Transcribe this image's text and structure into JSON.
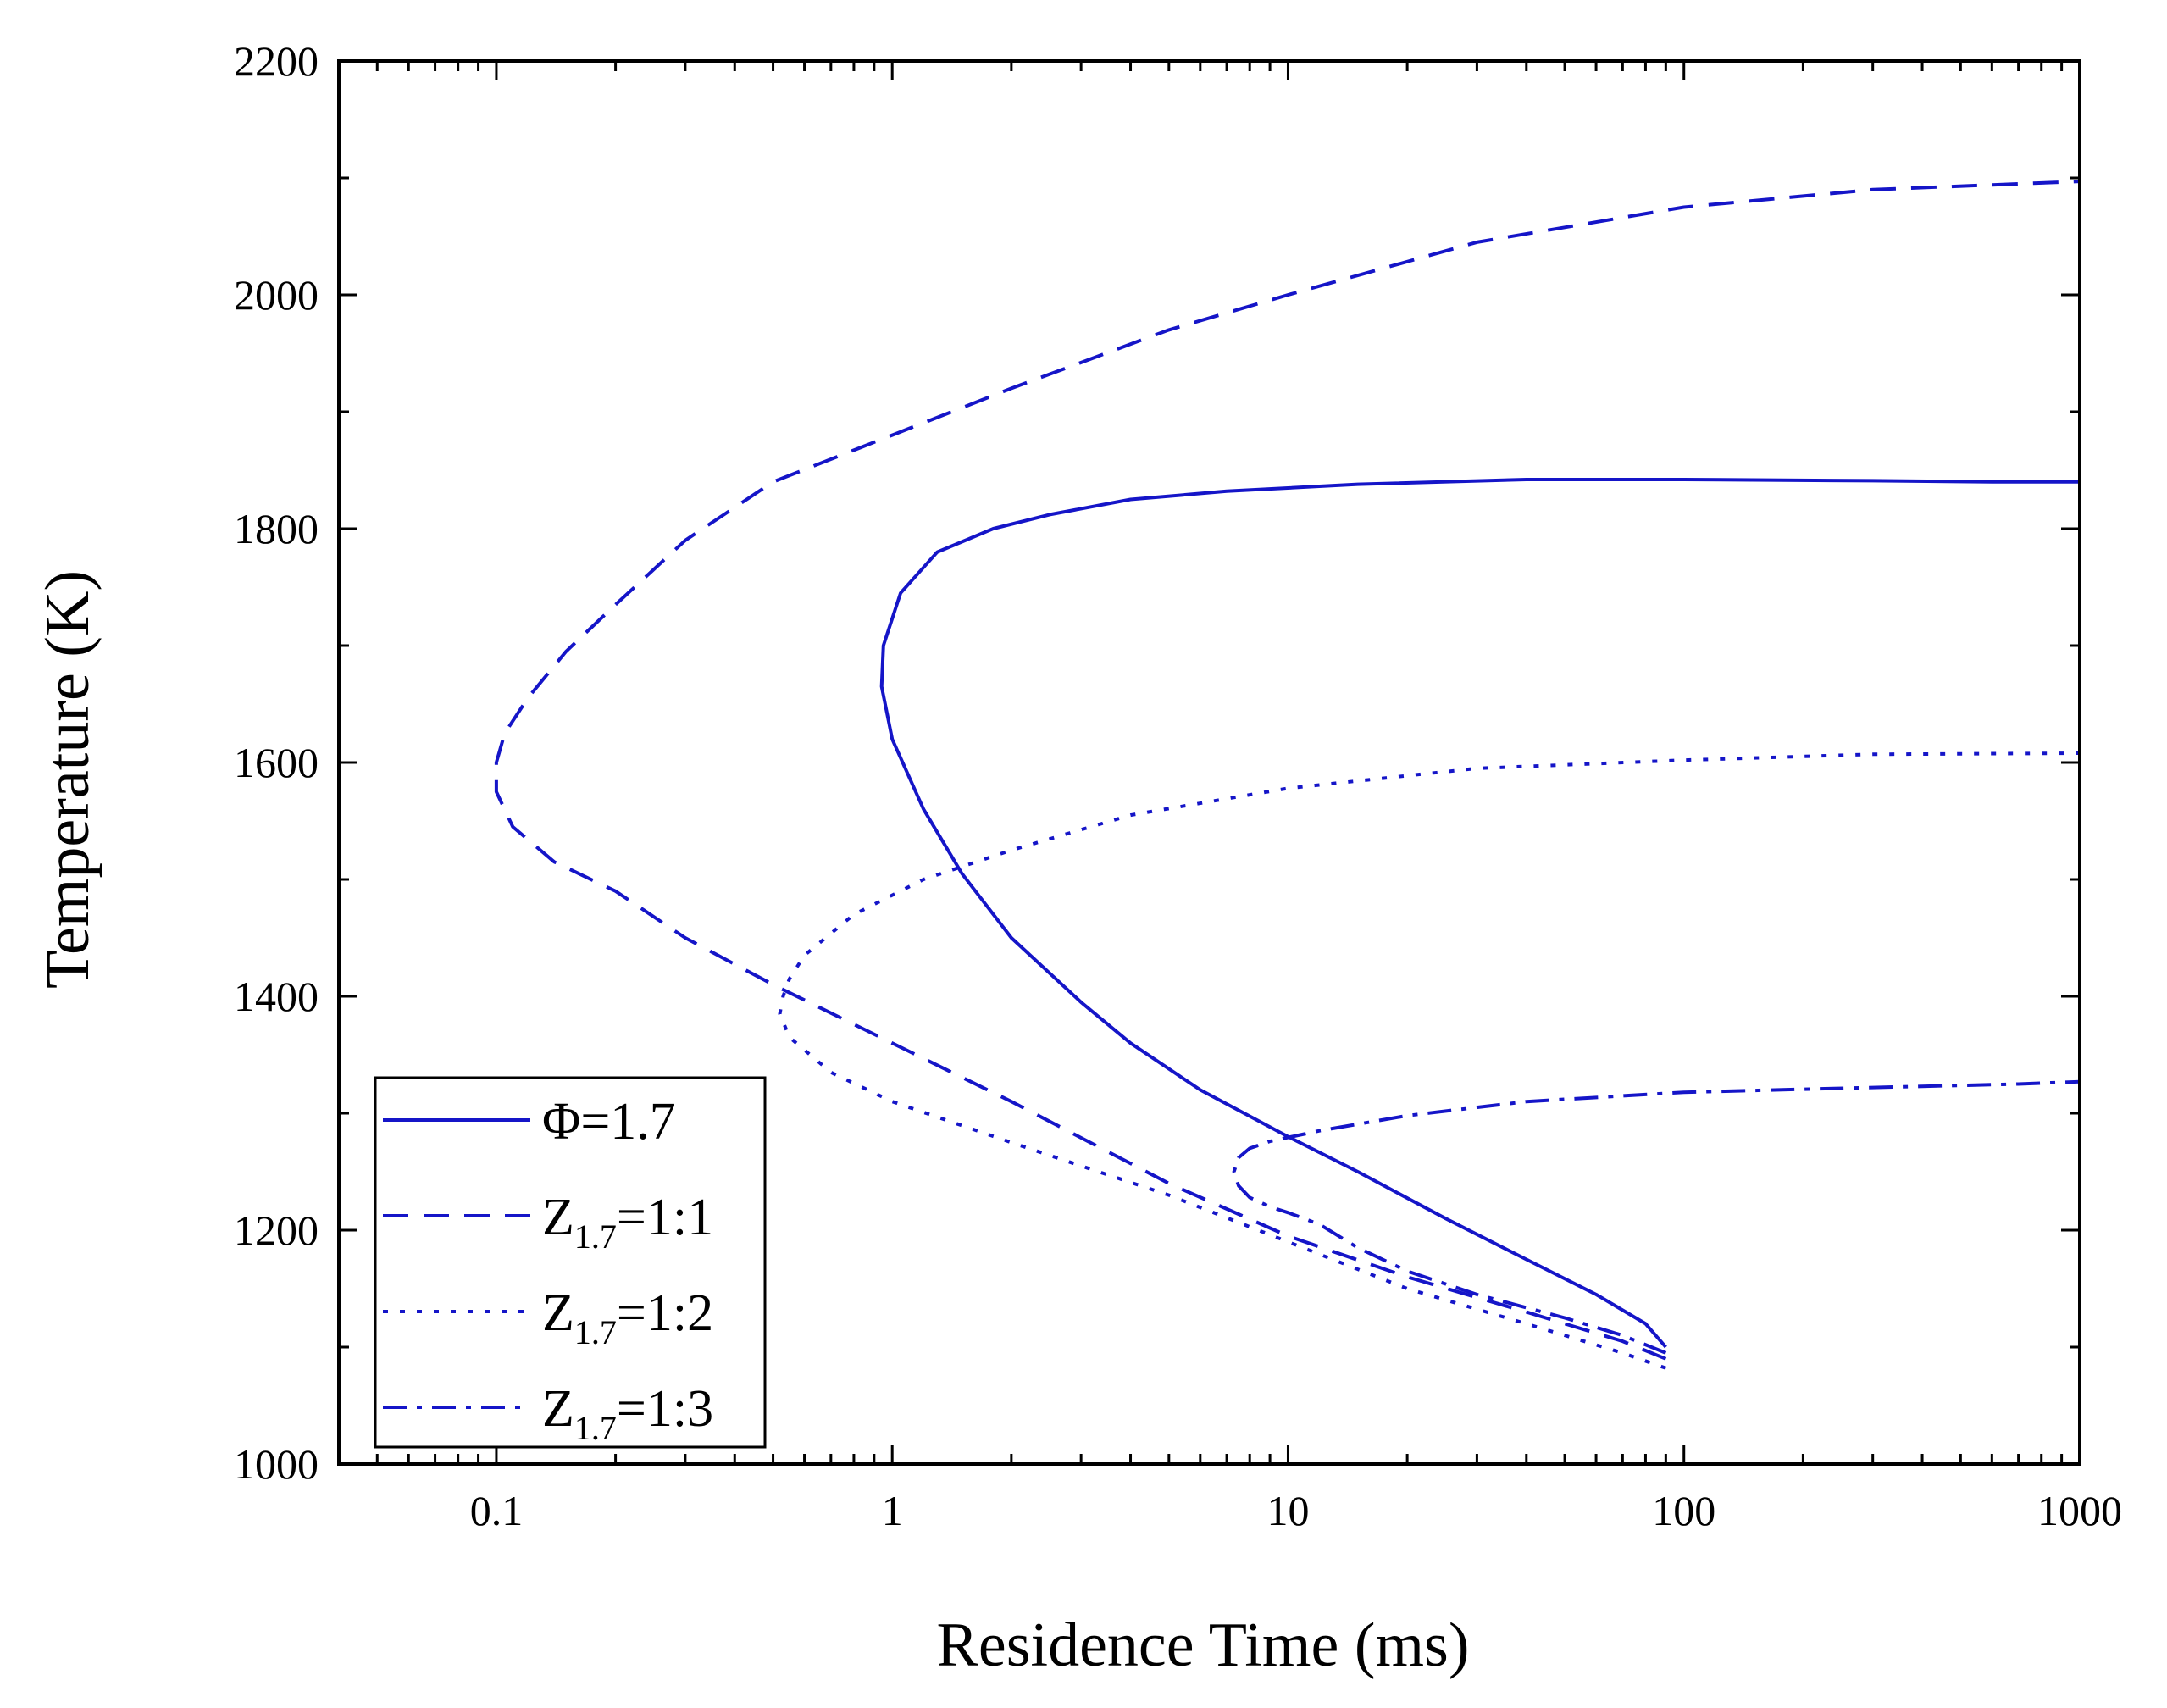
{
  "chart_data": {
    "type": "line",
    "title": "",
    "xlabel": "Residence Time (ms)",
    "ylabel": "Temperature (K)",
    "xscale": "log",
    "xlim": [
      0.04,
      1000
    ],
    "ylim": [
      1000,
      2200
    ],
    "x_ticks": [
      {
        "value": 0.1,
        "label": "0.1"
      },
      {
        "value": 1,
        "label": "1"
      },
      {
        "value": 10,
        "label": "10"
      },
      {
        "value": 100,
        "label": "100"
      },
      {
        "value": 1000,
        "label": "1000"
      }
    ],
    "y_ticks": [
      {
        "value": 1000,
        "label": "1000"
      },
      {
        "value": 1200,
        "label": "1200"
      },
      {
        "value": 1400,
        "label": "1400"
      },
      {
        "value": 1600,
        "label": "1600"
      },
      {
        "value": 1800,
        "label": "1800"
      },
      {
        "value": 2000,
        "label": "2000"
      },
      {
        "value": 2200,
        "label": "2200"
      }
    ],
    "grid": false,
    "legend_position": "bottom-left",
    "line_color": "#1515c8",
    "series": [
      {
        "name": "Φ=1.7",
        "legend_main": "Φ=1.7",
        "legend_sub": "",
        "legend_suffix": "",
        "style": "solid",
        "x": [
          90,
          80,
          60,
          40,
          25,
          15,
          10,
          6,
          4,
          3,
          2,
          1.5,
          1.2,
          1.0,
          0.94,
          0.95,
          1.05,
          1.3,
          1.8,
          2.5,
          4,
          7,
          15,
          40,
          100,
          300,
          600,
          1000
        ],
        "y": [
          1100,
          1120,
          1145,
          1175,
          1210,
          1250,
          1280,
          1320,
          1360,
          1395,
          1450,
          1505,
          1560,
          1620,
          1665,
          1700,
          1745,
          1780,
          1800,
          1812,
          1825,
          1832,
          1838,
          1842,
          1842,
          1841,
          1840,
          1840
        ]
      },
      {
        "name": "Z1.7=1:1",
        "legend_main": "Z",
        "legend_sub": "1.7",
        "legend_suffix": "=1:1",
        "style": "dashed",
        "x": [
          90,
          70,
          40,
          20,
          10,
          5,
          2,
          1,
          0.5,
          0.3,
          0.2,
          0.14,
          0.11,
          0.1,
          0.1,
          0.105,
          0.12,
          0.15,
          0.2,
          0.3,
          0.5,
          1,
          2,
          5,
          10,
          30,
          100,
          300,
          1000
        ],
        "y": [
          1090,
          1105,
          1130,
          1160,
          1195,
          1240,
          1310,
          1360,
          1410,
          1450,
          1490,
          1515,
          1545,
          1575,
          1600,
          1625,
          1655,
          1695,
          1735,
          1790,
          1840,
          1880,
          1920,
          1970,
          2000,
          2045,
          2075,
          2090,
          2097
        ]
      },
      {
        "name": "Z1.7=1:2",
        "legend_main": "Z",
        "legend_sub": "1.7",
        "legend_suffix": "=1:2",
        "style": "dotted",
        "x": [
          90,
          70,
          40,
          20,
          10,
          5,
          3,
          2,
          1,
          0.7,
          0.55,
          0.52,
          0.53,
          0.55,
          0.6,
          0.8,
          1.2,
          2,
          4,
          10,
          30,
          100,
          300,
          1000
        ],
        "y": [
          1082,
          1095,
          1120,
          1150,
          1190,
          1230,
          1255,
          1275,
          1310,
          1335,
          1365,
          1385,
          1400,
          1415,
          1435,
          1470,
          1500,
          1525,
          1555,
          1578,
          1595,
          1602,
          1607,
          1608
        ]
      },
      {
        "name": "Z1.7=1:3",
        "legend_main": "Z",
        "legend_sub": "1.7",
        "legend_suffix": "=1:3",
        "style": "dashdot",
        "x": [
          90,
          70,
          50,
          30,
          20,
          15,
          12,
          10,
          9,
          8,
          7.5,
          7.3,
          7.5,
          8,
          9,
          12,
          20,
          40,
          100,
          300,
          700,
          1000
        ],
        "y": [
          1095,
          1110,
          1125,
          1145,
          1165,
          1185,
          1205,
          1215,
          1220,
          1228,
          1238,
          1250,
          1262,
          1270,
          1276,
          1285,
          1298,
          1310,
          1318,
          1322,
          1325,
          1327
        ]
      }
    ]
  }
}
